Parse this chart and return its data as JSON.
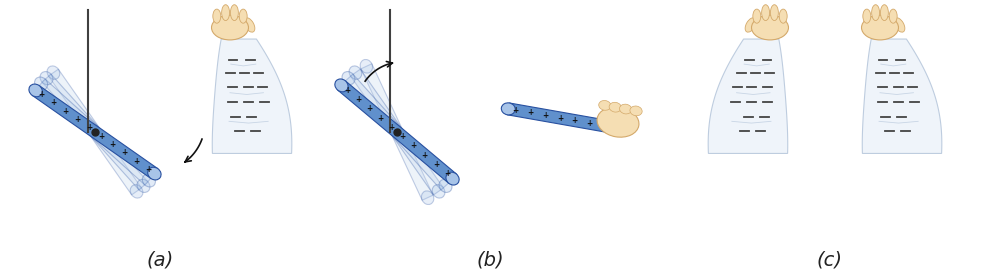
{
  "bg_color": "#ffffff",
  "label_a": "(a)",
  "label_b": "(b)",
  "label_c": "(c)",
  "label_fontsize": 14,
  "skin_color": "#F5DEB3",
  "skin_dark": "#D4A96A",
  "cloth_color_fill": "#EEF3FA",
  "cloth_color_line": "#B8C8DC",
  "rod_fill": "#6090CC",
  "rod_edge": "#2850A0",
  "rod_light": "#A8C4E8",
  "rod_ghost": "#B8CEE8",
  "thread_color": "#404040",
  "minus_color": "#444444",
  "plus_color": "#111111",
  "arrow_color": "#111111"
}
